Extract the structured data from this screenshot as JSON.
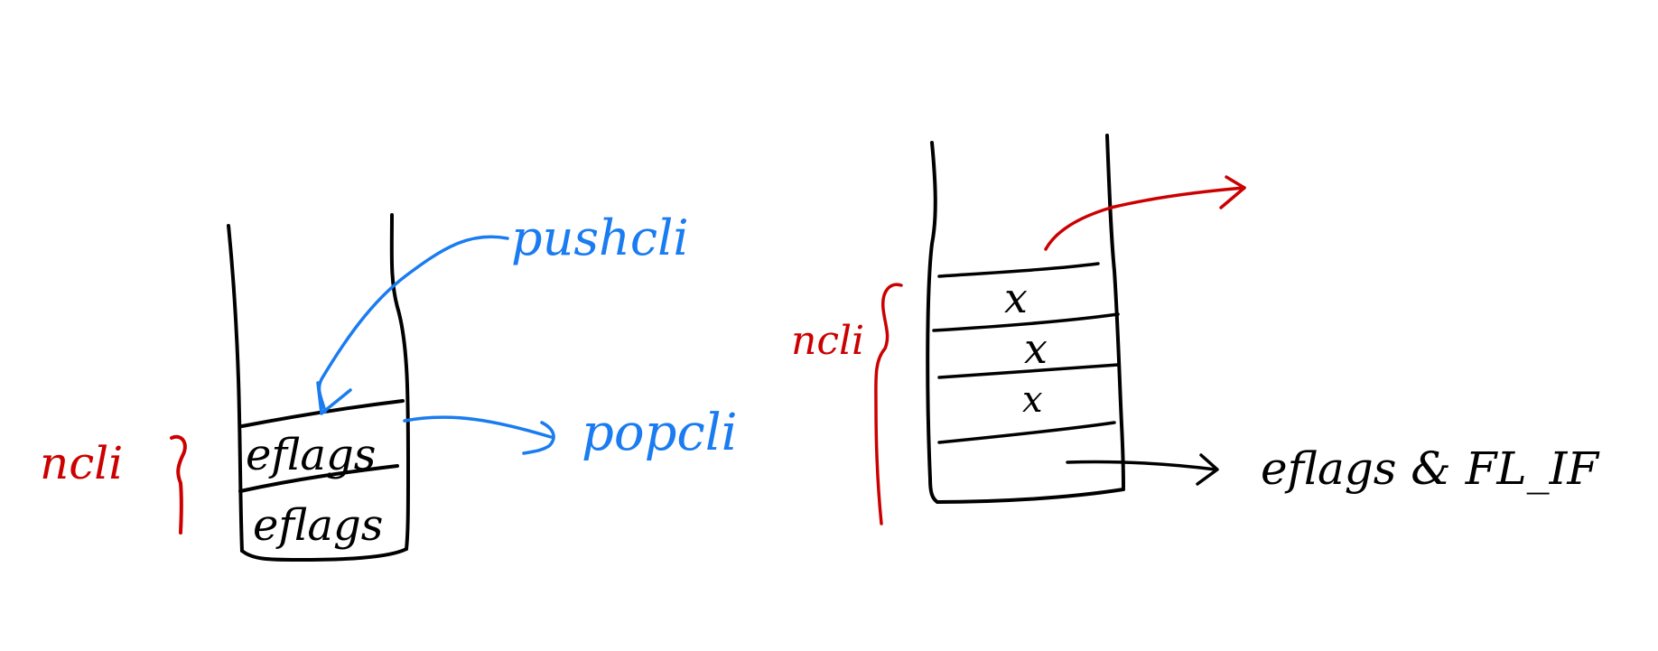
{
  "colors": {
    "ink": "#000000",
    "red": "#cc0000",
    "blue": "#1a7cf0"
  },
  "left_stack": {
    "side_label": "ncli",
    "push_label": "pushcli",
    "pop_label": "popcli",
    "slots": [
      "eflags",
      "eflags"
    ]
  },
  "right_stack": {
    "side_label": "ncli",
    "slots": [
      "x",
      "x",
      "x"
    ],
    "output_label": "eflags & FL_IF"
  }
}
